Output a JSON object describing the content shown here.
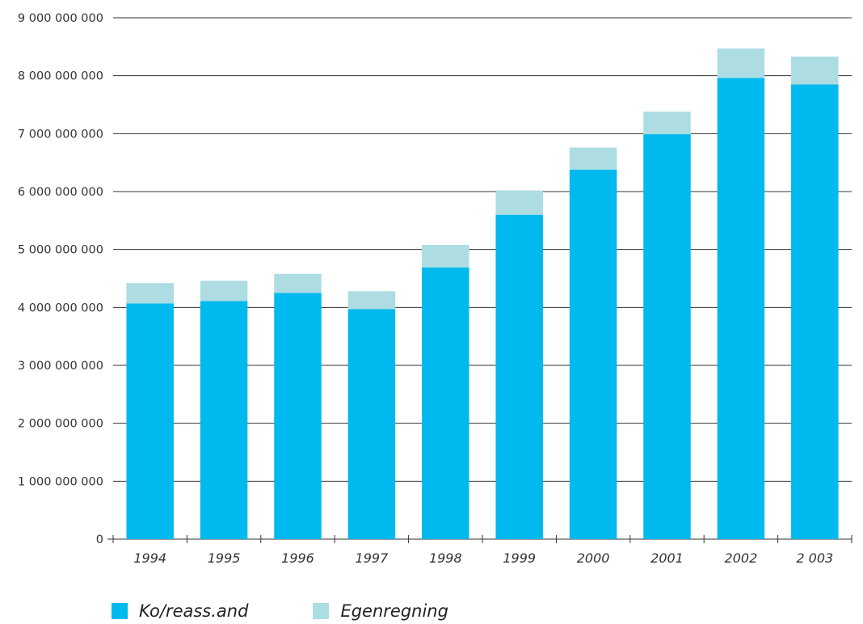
{
  "chart_data": {
    "type": "bar",
    "stacked": true,
    "categories": [
      "1994",
      "1995",
      "1996",
      "1997",
      "1998",
      "1999",
      "2000",
      "2001",
      "2002",
      "2 003"
    ],
    "series": [
      {
        "name": "Ko/reass.and",
        "color": "#00B9EF",
        "values": [
          4070000000,
          4110000000,
          4250000000,
          3970000000,
          4690000000,
          5600000000,
          6380000000,
          6990000000,
          7960000000,
          7850000000
        ]
      },
      {
        "name": "Egenregning",
        "color": "#ADDDE3",
        "values": [
          350000000,
          350000000,
          330000000,
          310000000,
          390000000,
          420000000,
          380000000,
          390000000,
          510000000,
          480000000
        ]
      }
    ],
    "ylim": [
      0,
      9000000000
    ],
    "yticks": [
      0,
      1000000000,
      2000000000,
      3000000000,
      4000000000,
      5000000000,
      6000000000,
      7000000000,
      8000000000,
      9000000000
    ],
    "ytick_labels": [
      "0",
      "1 000 000 000",
      "2 000 000 000",
      "3 000 000 000",
      "4 000 000 000",
      "5 000 000 000",
      "6 000 000 000",
      "7 000 000 000",
      "8 000 000 000",
      "9 000 000 000"
    ],
    "grid": "horizontal",
    "legend_position": "bottom-left"
  }
}
